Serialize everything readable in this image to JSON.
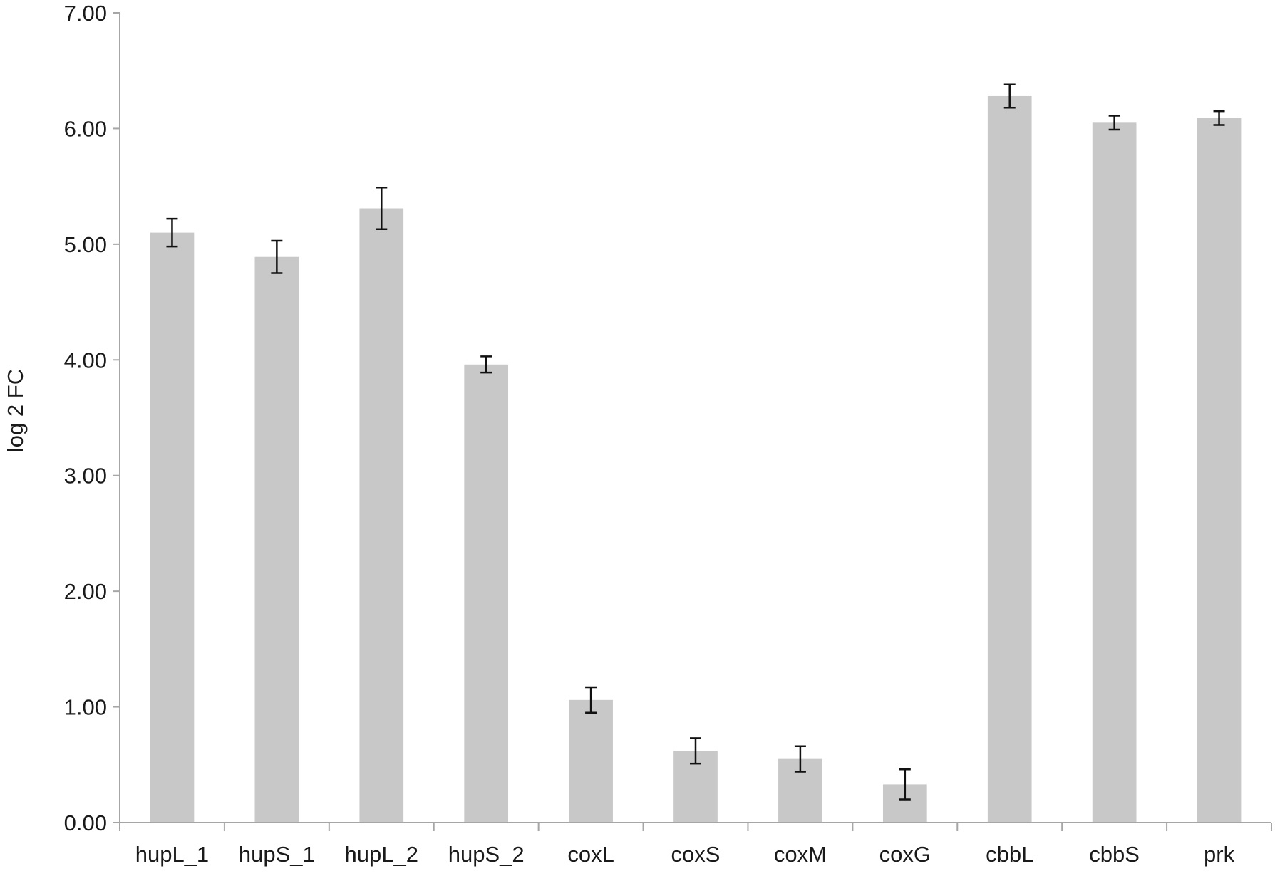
{
  "chart_data": {
    "type": "bar",
    "title": "",
    "xlabel": "",
    "ylabel": "log 2 FC",
    "ylim": [
      0,
      7
    ],
    "yticks": [
      "0.00",
      "1.00",
      "2.00",
      "3.00",
      "4.00",
      "5.00",
      "6.00",
      "7.00"
    ],
    "grid": false,
    "legend": "none",
    "categories": [
      "hupL_1",
      "hupS_1",
      "hupL_2",
      "hupS_2",
      "coxL",
      "coxS",
      "coxM",
      "coxG",
      "cbbL",
      "cbbS",
      "prk"
    ],
    "values": [
      5.1,
      4.89,
      5.31,
      3.96,
      1.06,
      0.62,
      0.55,
      0.33,
      6.28,
      6.05,
      6.09
    ],
    "errors": [
      0.12,
      0.14,
      0.18,
      0.07,
      0.11,
      0.11,
      0.11,
      0.13,
      0.1,
      0.06,
      0.06
    ],
    "bar_color": "#c8c8c8",
    "axis_color": "#a6a6a6"
  }
}
